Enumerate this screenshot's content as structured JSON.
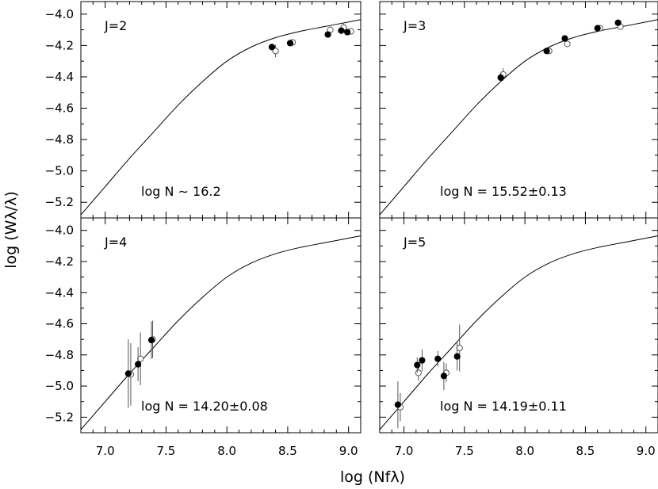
{
  "chart_data": {
    "type": "scatter",
    "layout": "2x2 grid of panels with shared axes",
    "xlabel": "log (Nfλ)",
    "ylabel": "log (Wλ/λ)",
    "xlim": [
      6.8,
      9.1
    ],
    "ylim": [
      -5.3,
      -3.92
    ],
    "xticks": [
      7.0,
      7.5,
      8.0,
      8.5,
      9.0
    ],
    "xtick_labels": [
      "7.0",
      "7.5",
      "8.0",
      "8.5",
      "9.0"
    ],
    "yticks": [
      -4.0,
      -4.2,
      -4.4,
      -4.6,
      -4.8,
      -5.0,
      -5.2
    ],
    "ytick_labels": [
      "−4.0",
      "−4.2",
      "−4.4",
      "−4.6",
      "−4.8",
      "−5.0",
      "−5.2"
    ],
    "curve_of_growth": {
      "x": [
        6.8,
        7.0,
        7.2,
        7.4,
        7.6,
        7.8,
        8.0,
        8.2,
        8.4,
        8.6,
        8.8,
        9.0,
        9.1
      ],
      "y": [
        -5.28,
        -5.1,
        -4.92,
        -4.75,
        -4.58,
        -4.43,
        -4.3,
        -4.21,
        -4.15,
        -4.11,
        -4.08,
        -4.05,
        -4.035
      ]
    },
    "panels": [
      {
        "id": "J2",
        "label": "J=2",
        "annotation": "log N ∼ 16.2",
        "filled": [
          {
            "x": 8.37,
            "y": -4.21,
            "err": 0.02
          },
          {
            "x": 8.52,
            "y": -4.185,
            "err": 0.015
          },
          {
            "x": 8.83,
            "y": -4.13,
            "err": 0.015
          },
          {
            "x": 8.94,
            "y": -4.105,
            "err": 0.015
          },
          {
            "x": 8.99,
            "y": -4.115,
            "err": 0.015
          }
        ],
        "open": [
          {
            "x": 8.4,
            "y": -4.235,
            "err": 0.04
          },
          {
            "x": 8.54,
            "y": -4.18,
            "err": 0.015
          },
          {
            "x": 8.85,
            "y": -4.1,
            "err": 0.015
          },
          {
            "x": 8.96,
            "y": -4.085,
            "err": 0.03
          },
          {
            "x": 9.02,
            "y": -4.11,
            "err": 0.015
          }
        ]
      },
      {
        "id": "J3",
        "label": "J=3",
        "annotation": "log N = 15.52±0.13",
        "filled": [
          {
            "x": 7.8,
            "y": -4.405,
            "err": 0.03
          },
          {
            "x": 8.18,
            "y": -4.235,
            "err": 0.015
          },
          {
            "x": 8.33,
            "y": -4.155,
            "err": 0.015
          },
          {
            "x": 8.6,
            "y": -4.09,
            "err": 0.015
          },
          {
            "x": 8.77,
            "y": -4.055,
            "err": 0.015
          }
        ],
        "open": [
          {
            "x": 7.82,
            "y": -4.385,
            "err": 0.04
          },
          {
            "x": 8.2,
            "y": -4.235,
            "err": 0.015
          },
          {
            "x": 8.35,
            "y": -4.19,
            "err": 0.015
          },
          {
            "x": 8.62,
            "y": -4.09,
            "err": 0.015
          },
          {
            "x": 8.79,
            "y": -4.08,
            "err": 0.015
          }
        ]
      },
      {
        "id": "J4",
        "label": "J=4",
        "annotation": "log N = 14.20±0.08",
        "filled": [
          {
            "x": 7.19,
            "y": -4.92,
            "err": 0.22
          },
          {
            "x": 7.27,
            "y": -4.86,
            "err": 0.11
          },
          {
            "x": 7.38,
            "y": -4.705,
            "err": 0.12
          }
        ],
        "open": [
          {
            "x": 7.21,
            "y": -4.925,
            "err": 0.2
          },
          {
            "x": 7.29,
            "y": -4.825,
            "err": 0.17
          },
          {
            "x": 7.39,
            "y": -4.7,
            "err": 0.12
          }
        ]
      },
      {
        "id": "J5",
        "label": "J=5",
        "annotation": "log N = 14.19±0.11",
        "filled": [
          {
            "x": 6.95,
            "y": -5.12,
            "err": 0.15
          },
          {
            "x": 7.11,
            "y": -4.865,
            "err": 0.05
          },
          {
            "x": 7.15,
            "y": -4.835,
            "err": 0.07
          },
          {
            "x": 7.28,
            "y": -4.825,
            "err": 0.05
          },
          {
            "x": 7.33,
            "y": -4.935,
            "err": 0.09
          },
          {
            "x": 7.44,
            "y": -4.81,
            "err": 0.09
          }
        ],
        "open": [
          {
            "x": 6.97,
            "y": -5.135,
            "err": 0.09
          },
          {
            "x": 7.12,
            "y": -4.915,
            "err": 0.05
          },
          {
            "x": 7.35,
            "y": -4.915,
            "err": 0.06
          },
          {
            "x": 7.46,
            "y": -4.755,
            "err": 0.15
          }
        ]
      }
    ]
  }
}
